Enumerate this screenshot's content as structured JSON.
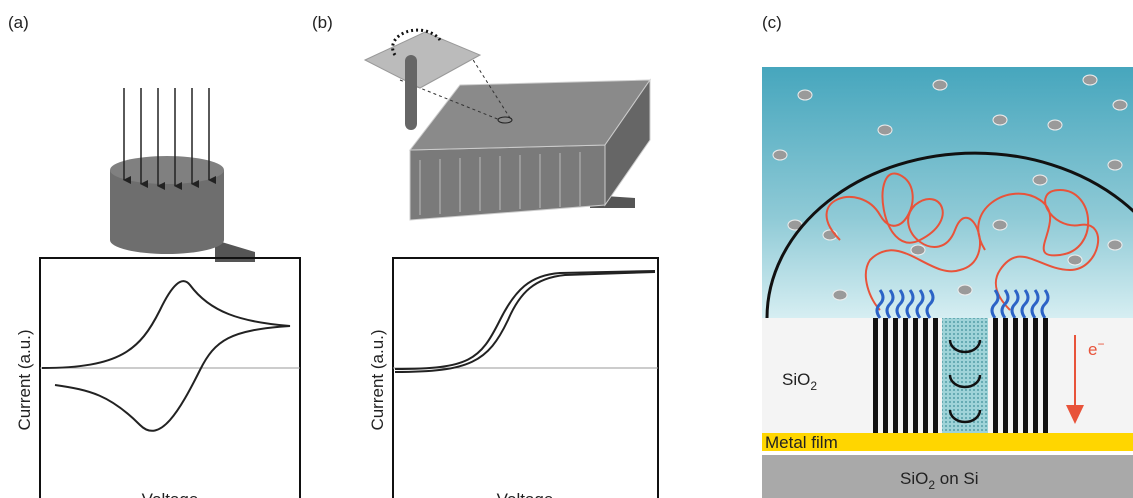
{
  "panels": [
    {
      "label": "(a)",
      "plot": {
        "y_label": "Current (a.u.)",
        "x_label": "Voltage"
      }
    },
    {
      "label": "(b)",
      "plot": {
        "y_label": "Current (a.u.)",
        "x_label": "Voltage"
      }
    },
    {
      "label": "(c)",
      "labels": {
        "oxide": {
          "base": "SiO",
          "sub": "2"
        },
        "electron": {
          "base": "e",
          "sup": "−"
        },
        "metal": "Metal film",
        "substrate": {
          "base": "SiO",
          "sub": "2",
          "rest": " on Si"
        }
      }
    }
  ]
}
